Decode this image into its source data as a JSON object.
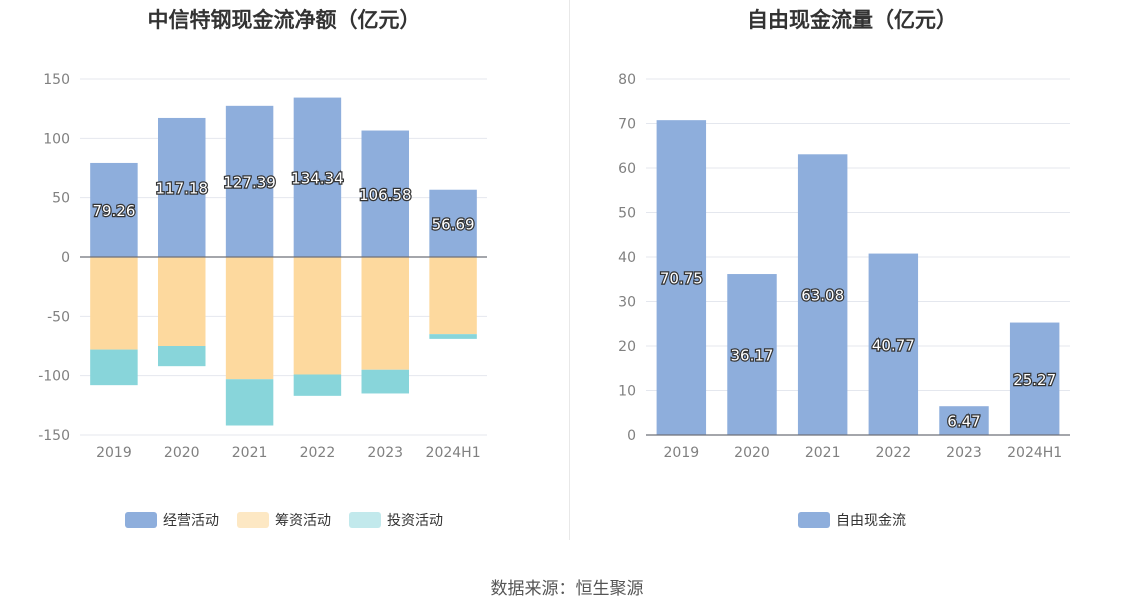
{
  "left_chart": {
    "title": "中信特钢现金流净额（亿元）",
    "legend": [
      {
        "label": "经营活动",
        "color": "#8eaedc"
      },
      {
        "label": "筹资活动",
        "color": "#fdd99e"
      },
      {
        "label": "投资活动",
        "color": "#88d5da"
      }
    ]
  },
  "right_chart": {
    "title": "自由现金流量（亿元）",
    "legend": [
      {
        "label": "自由现金流",
        "color": "#8eaedc"
      }
    ]
  },
  "source": "数据来源：恒生聚源",
  "chart_data": [
    {
      "type": "bar",
      "stacked": true,
      "title": "中信特钢现金流净额（亿元）",
      "categories": [
        "2019",
        "2020",
        "2021",
        "2022",
        "2023",
        "2024H1"
      ],
      "series": [
        {
          "name": "经营活动",
          "color": "#8eaedc",
          "values": [
            79.26,
            117.18,
            127.39,
            134.34,
            106.58,
            56.69
          ],
          "labels": [
            "79.26",
            "117.18",
            "127.39",
            "134.34",
            "106.58",
            "56.69"
          ]
        },
        {
          "name": "筹资活动",
          "color": "#fdd99e",
          "values": [
            -78,
            -75,
            -103,
            -99,
            -95,
            -65
          ]
        },
        {
          "name": "投资活动",
          "color": "#88d5da",
          "values": [
            -30,
            -17,
            -39,
            -18,
            -20,
            -4
          ]
        }
      ],
      "ylim": [
        -150,
        150
      ],
      "yticks": [
        150,
        100,
        50,
        0,
        -50,
        -100,
        -150
      ],
      "grid": true,
      "legend_position": "bottom"
    },
    {
      "type": "bar",
      "title": "自由现金流量（亿元）",
      "categories": [
        "2019",
        "2020",
        "2021",
        "2022",
        "2023",
        "2024H1"
      ],
      "series": [
        {
          "name": "自由现金流",
          "color": "#8eaedc",
          "values": [
            70.75,
            36.17,
            63.08,
            40.77,
            6.47,
            25.27
          ],
          "labels": [
            "70.75",
            "36.17",
            "63.08",
            "40.77",
            "6.47",
            "25.27"
          ]
        }
      ],
      "ylim": [
        0,
        80
      ],
      "yticks": [
        80,
        70,
        60,
        50,
        40,
        30,
        20,
        10,
        0
      ],
      "grid": true,
      "legend_position": "bottom"
    }
  ]
}
